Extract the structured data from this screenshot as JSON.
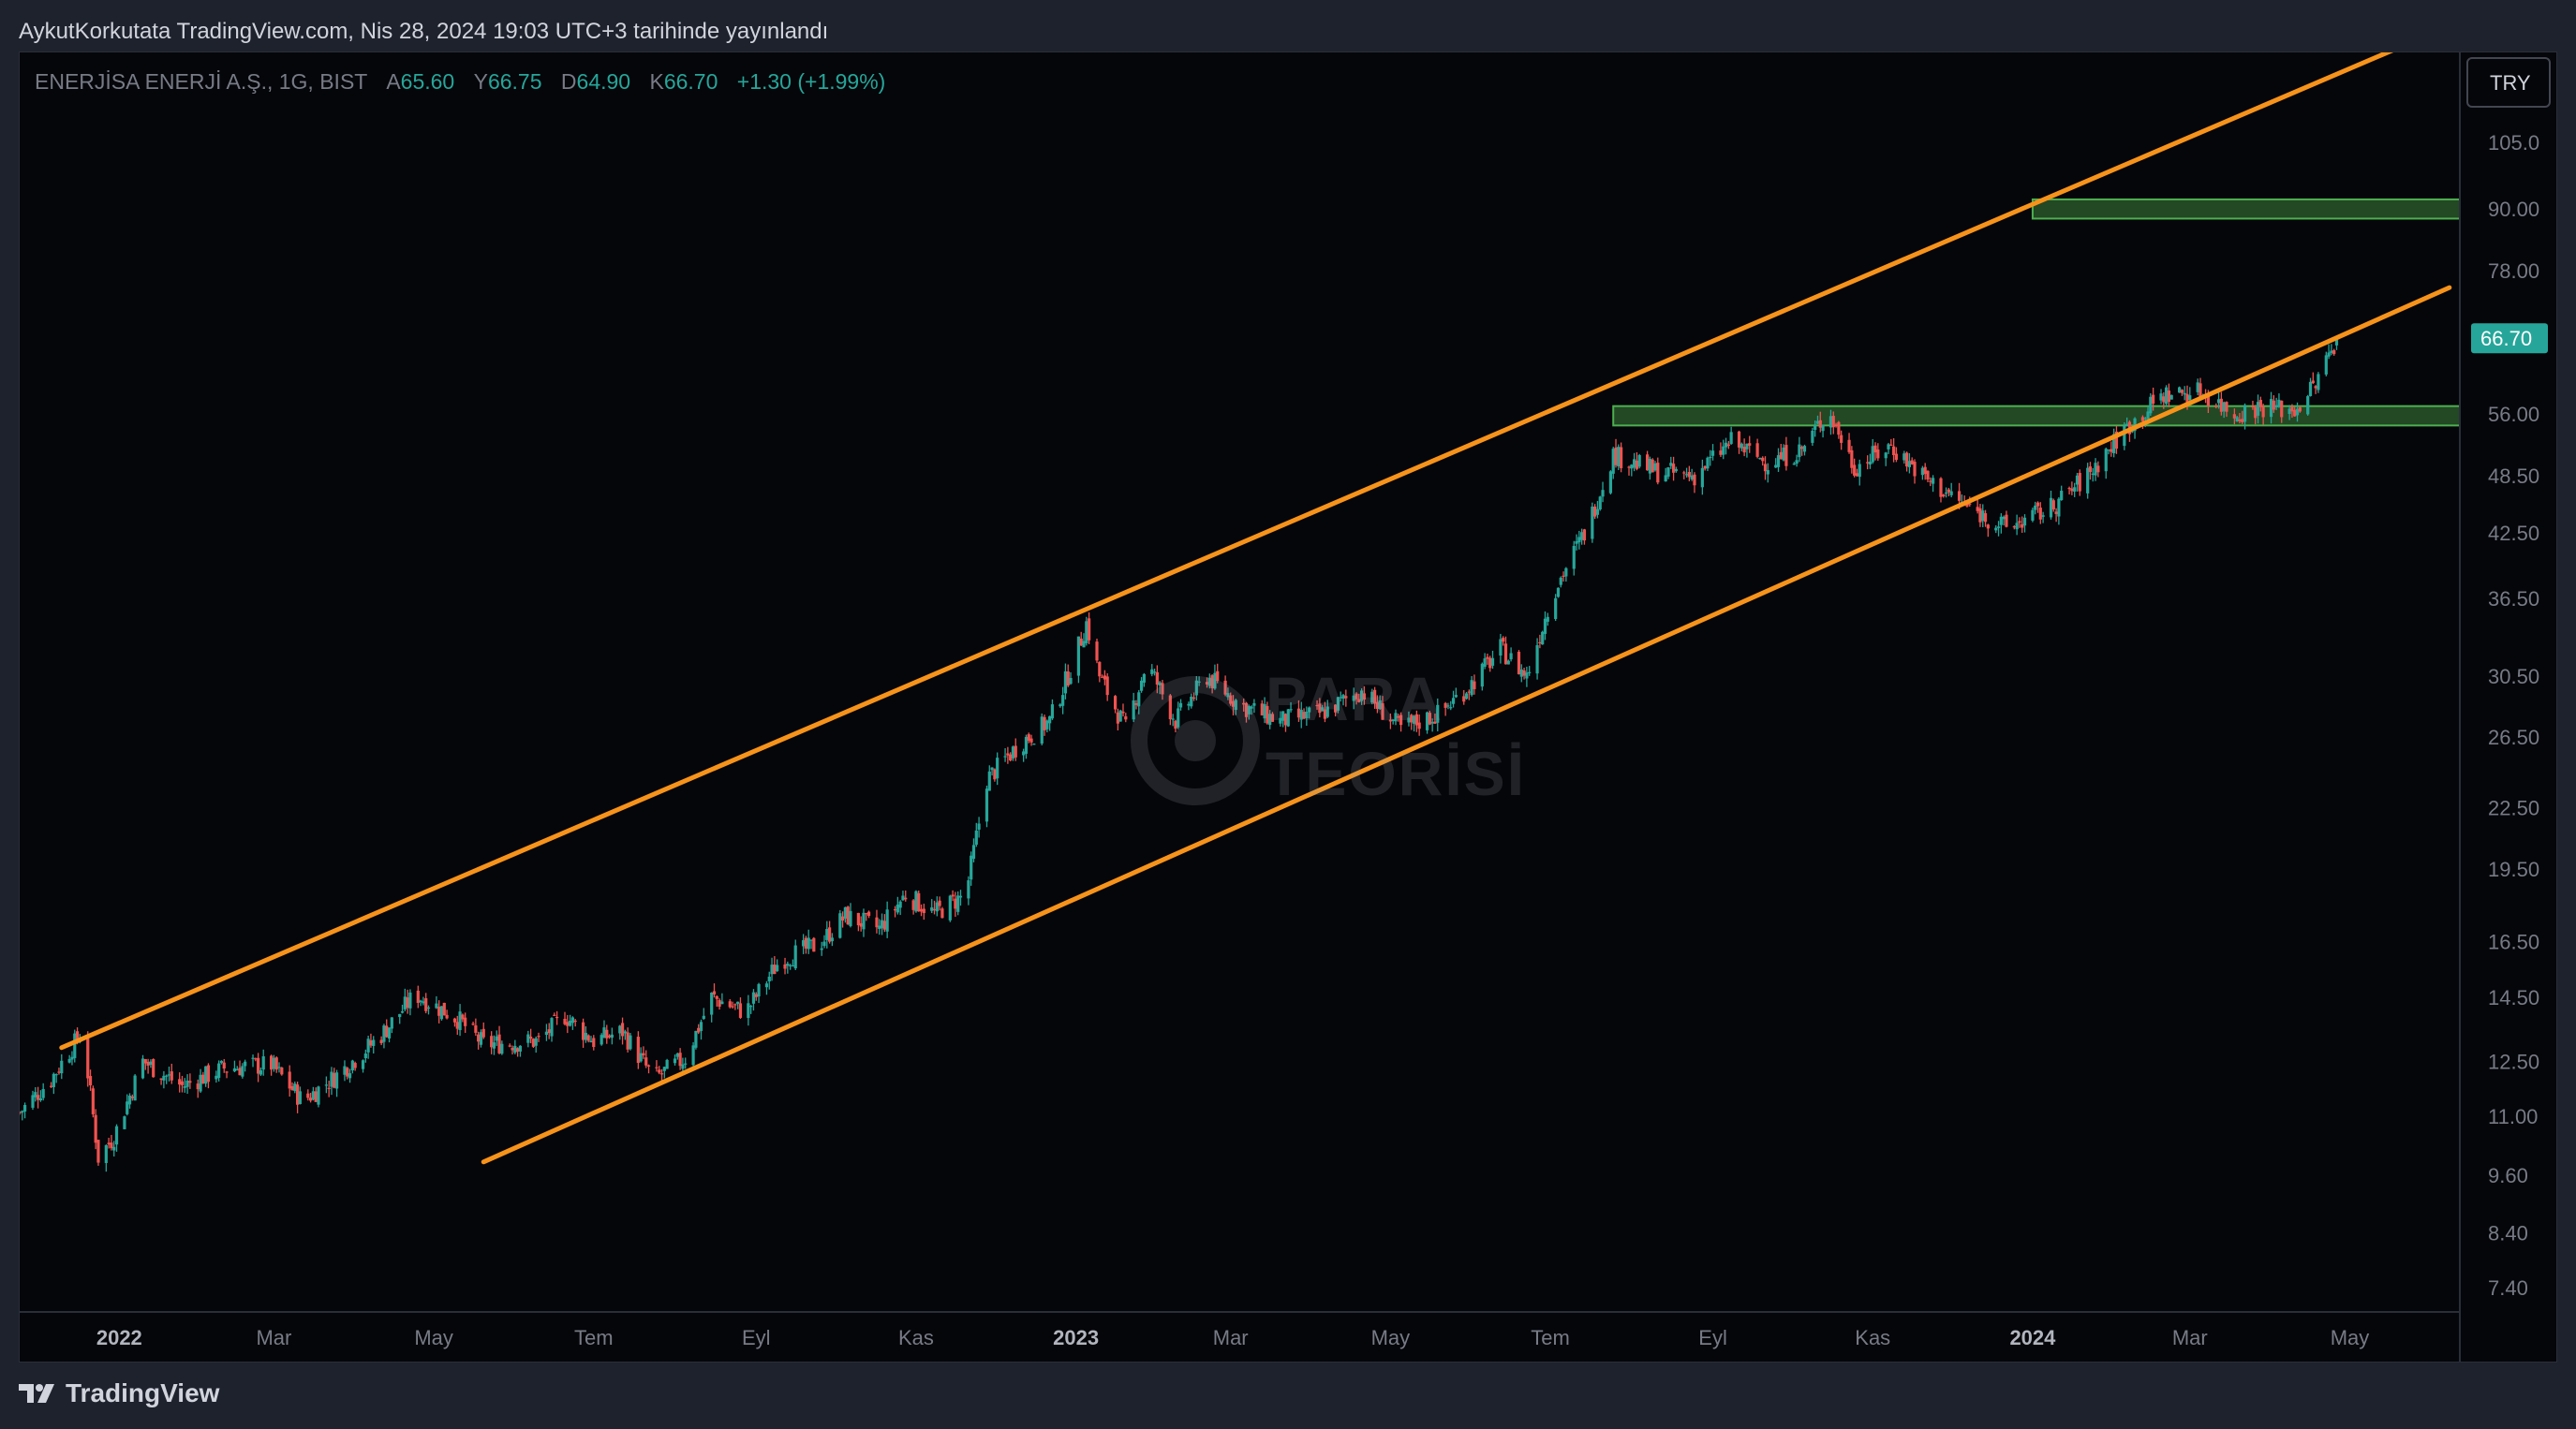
{
  "header": {
    "published_text": "AykutKorkutata TradingView.com, Nis 28, 2024 19:03 UTC+3 tarihinde yayınlandı"
  },
  "legend": {
    "symbol": "ENERJİSA ENERJİ A.Ş., 1G, BIST",
    "open_label": "A",
    "open": "65.60",
    "high_label": "Y",
    "high": "66.75",
    "low_label": "D",
    "low": "64.90",
    "close_label": "K",
    "close": "66.70",
    "change": "+1.30 (+1.99%)"
  },
  "currency_button": "TRY",
  "last_price_label": "66.70",
  "watermark": {
    "line1": "PARA",
    "line2": "TEORİSİ"
  },
  "footer": {
    "brand": "TradingView"
  },
  "colors": {
    "up": "#26a69a",
    "down": "#ef5350",
    "channel": "#f7931a",
    "zone_fill": "#2e5f2e",
    "zone_border": "#4caf50",
    "background": "#05060a"
  },
  "chart_data": {
    "type": "candlestick",
    "title": "ENERJİSA ENERJİ A.Ş., 1G, BIST",
    "y_scale": "log",
    "ylim": [
      6.8,
      135
    ],
    "y_ticks": [
      "105.0",
      "90.00",
      "78.00",
      "66.70",
      "56.00",
      "48.50",
      "42.50",
      "36.50",
      "30.50",
      "26.50",
      "22.50",
      "19.50",
      "16.50",
      "14.50",
      "12.50",
      "11.00",
      "9.60",
      "8.40",
      "7.40"
    ],
    "x_ticks": [
      {
        "label": "2022",
        "date": "2022-01",
        "bold": true
      },
      {
        "label": "Mar",
        "date": "2022-03"
      },
      {
        "label": "May",
        "date": "2022-05"
      },
      {
        "label": "Tem",
        "date": "2022-07"
      },
      {
        "label": "Eyl",
        "date": "2022-09"
      },
      {
        "label": "Kas",
        "date": "2022-11"
      },
      {
        "label": "2023",
        "date": "2023-01",
        "bold": true
      },
      {
        "label": "Mar",
        "date": "2023-03"
      },
      {
        "label": "May",
        "date": "2023-05"
      },
      {
        "label": "Tem",
        "date": "2023-07"
      },
      {
        "label": "Eyl",
        "date": "2023-09"
      },
      {
        "label": "Kas",
        "date": "2023-11"
      },
      {
        "label": "2024",
        "date": "2024-01",
        "bold": true
      },
      {
        "label": "Mar",
        "date": "2024-03"
      },
      {
        "label": "May",
        "date": "2024-05"
      }
    ],
    "price_path": [
      [
        "2021-11-24",
        11.1
      ],
      [
        "2021-12-06",
        12.0
      ],
      [
        "2021-12-18",
        13.4
      ],
      [
        "2021-12-24",
        10.0
      ],
      [
        "2021-12-30",
        10.5
      ],
      [
        "2022-01-10",
        12.5
      ],
      [
        "2022-01-25",
        11.8
      ],
      [
        "2022-02-10",
        12.3
      ],
      [
        "2022-02-28",
        12.4
      ],
      [
        "2022-03-12",
        11.4
      ],
      [
        "2022-03-25",
        12.1
      ],
      [
        "2022-04-10",
        13.2
      ],
      [
        "2022-04-24",
        14.6
      ],
      [
        "2022-05-10",
        13.8
      ],
      [
        "2022-05-20",
        13.0
      ],
      [
        "2022-06-10",
        13.1
      ],
      [
        "2022-06-20",
        13.9
      ],
      [
        "2022-07-01",
        13.1
      ],
      [
        "2022-07-12",
        13.4
      ],
      [
        "2022-07-24",
        12.0
      ],
      [
        "2022-08-05",
        12.6
      ],
      [
        "2022-08-15",
        14.5
      ],
      [
        "2022-08-28",
        14.0
      ],
      [
        "2022-09-10",
        15.8
      ],
      [
        "2022-09-25",
        16.4
      ],
      [
        "2022-10-05",
        17.5
      ],
      [
        "2022-10-18",
        17.0
      ],
      [
        "2022-10-28",
        18.4
      ],
      [
        "2022-11-08",
        17.6
      ],
      [
        "2022-11-20",
        18.4
      ],
      [
        "2022-11-28",
        24.0
      ],
      [
        "2022-12-10",
        26.0
      ],
      [
        "2022-12-22",
        27.5
      ],
      [
        "2022-12-31",
        31.5
      ],
      [
        "2023-01-05",
        34.5
      ],
      [
        "2023-01-10",
        30.5
      ],
      [
        "2023-01-20",
        27.0
      ],
      [
        "2023-01-28",
        31.5
      ],
      [
        "2023-02-08",
        27.5
      ],
      [
        "2023-02-20",
        30.5
      ],
      [
        "2023-03-05",
        28.5
      ],
      [
        "2023-03-20",
        27.5
      ],
      [
        "2023-04-05",
        28.0
      ],
      [
        "2023-04-20",
        29.5
      ],
      [
        "2023-05-05",
        27.0
      ],
      [
        "2023-05-20",
        28.0
      ],
      [
        "2023-06-01",
        30.0
      ],
      [
        "2023-06-12",
        32.5
      ],
      [
        "2023-06-22",
        30.5
      ],
      [
        "2023-07-02",
        37.0
      ],
      [
        "2023-07-15",
        43.0
      ],
      [
        "2023-07-25",
        51.0
      ],
      [
        "2023-08-10",
        49.0
      ],
      [
        "2023-08-25",
        48.5
      ],
      [
        "2023-09-08",
        52.5
      ],
      [
        "2023-09-22",
        50.0
      ],
      [
        "2023-10-05",
        51.5
      ],
      [
        "2023-10-15",
        56.5
      ],
      [
        "2023-10-25",
        49.5
      ],
      [
        "2023-11-08",
        52.0
      ],
      [
        "2023-11-22",
        48.0
      ],
      [
        "2023-12-08",
        45.0
      ],
      [
        "2023-12-22",
        43.0
      ],
      [
        "2024-01-08",
        45.0
      ],
      [
        "2024-01-22",
        48.5
      ],
      [
        "2024-02-05",
        54.0
      ],
      [
        "2024-02-20",
        58.5
      ],
      [
        "2024-03-05",
        59.0
      ],
      [
        "2024-03-18",
        56.0
      ],
      [
        "2024-03-28",
        57.0
      ],
      [
        "2024-04-10",
        56.5
      ],
      [
        "2024-04-18",
        60.0
      ],
      [
        "2024-04-26",
        66.7
      ]
    ],
    "channel_upper": [
      [
        "2021-12-10",
        12.9
      ],
      [
        "2024-06-01",
        135.0
      ]
    ],
    "channel_lower": [
      [
        "2022-05-20",
        9.9
      ],
      [
        "2024-06-08",
        75.0
      ]
    ],
    "zones": [
      {
        "from_date": "2023-07-25",
        "y_low": 54.5,
        "y_high": 57.0
      },
      {
        "from_date": "2024-01-01",
        "y_low": 88.0,
        "y_high": 92.0
      }
    ],
    "last_price": 66.7,
    "legend": "top-left",
    "grid": false
  }
}
